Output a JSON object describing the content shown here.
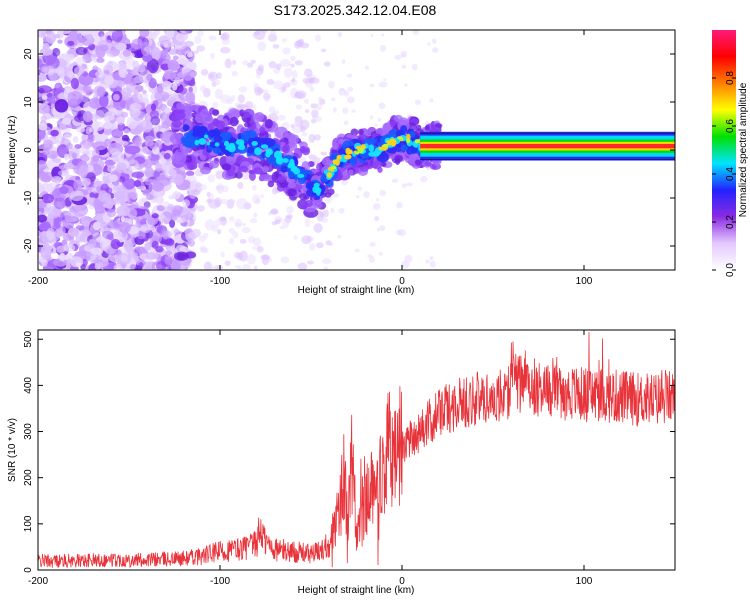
{
  "title": "S173.2025.342.12.04.E08",
  "colors": {
    "snr_line": "#e8333a",
    "axis": "#000000",
    "speckle": "#7b2ff7",
    "ridge": "#ff2a2a"
  },
  "chart_data": [
    {
      "type": "heatmap",
      "title": "S173.2025.342.12.04.E08",
      "xlabel": "Height of straight line (km)",
      "ylabel": "Frequency (Hz)",
      "xlim": [
        -200,
        150
      ],
      "ylim": [
        -25,
        25
      ],
      "xticks": [
        -200,
        -100,
        0,
        100
      ],
      "yticks": [
        -20,
        -10,
        0,
        10,
        20
      ],
      "xtick_labels": [
        "-200",
        "-100",
        "0",
        "100"
      ],
      "ytick_labels": [
        "-20",
        "-10",
        "0",
        "10",
        "20"
      ],
      "ridge": {
        "x": [
          -120,
          -105,
          -95,
          -85,
          -75,
          -65,
          -55,
          -48,
          -45,
          -40,
          -35,
          -30,
          -25,
          -20,
          -15,
          -10,
          -5,
          0,
          5,
          10,
          20,
          60,
          100,
          150
        ],
        "y": [
          3,
          2,
          1,
          1.5,
          0,
          -2,
          -5,
          -8,
          -8,
          -5,
          -2,
          -1,
          0,
          0,
          0,
          0.5,
          1.5,
          2.5,
          2,
          1,
          0.8,
          0.8,
          0.8,
          0.8
        ]
      },
      "colorbar": {
        "label": "Normalized spectral amplitude",
        "range": [
          0,
          1
        ],
        "ticks": [
          "0.0",
          "0.2",
          "0.4",
          "0.6",
          "0.8"
        ],
        "tick_values": [
          0.0,
          0.2,
          0.4,
          0.6,
          0.8
        ],
        "stops": [
          "#ffffff",
          "#e4c8ff",
          "#8a2be2",
          "#2222ff",
          "#00e5ff",
          "#00e000",
          "#ffff00",
          "#ff7f00",
          "#ff0000",
          "#ff1a7a"
        ]
      }
    },
    {
      "type": "line",
      "xlabel": "Height of straight line (km)",
      "ylabel": "SNR (10 * v/v)",
      "xlim": [
        -200,
        150
      ],
      "ylim": [
        0,
        520
      ],
      "xticks": [
        -200,
        -100,
        0,
        100
      ],
      "yticks": [
        0,
        100,
        200,
        300,
        400,
        500
      ],
      "xtick_labels": [
        "-200",
        "-100",
        "0",
        "100"
      ],
      "ytick_labels": [
        "0",
        "100",
        "200",
        "300",
        "400",
        "500"
      ],
      "series": [
        {
          "name": "SNR",
          "x": [
            -200,
            -180,
            -160,
            -140,
            -120,
            -110,
            -100,
            -90,
            -80,
            -78,
            -75,
            -70,
            -60,
            -50,
            -45,
            -40,
            -35,
            -32,
            -30,
            -27,
            -25,
            -22,
            -20,
            -15,
            -10,
            -5,
            0,
            5,
            10,
            15,
            20,
            25,
            30,
            40,
            50,
            58,
            60,
            65,
            70,
            80,
            90,
            100,
            110,
            120,
            130,
            140,
            150
          ],
          "y": [
            20,
            20,
            22,
            22,
            25,
            30,
            40,
            45,
            55,
            90,
            60,
            45,
            40,
            35,
            40,
            60,
            120,
            200,
            100,
            250,
            90,
            180,
            150,
            200,
            240,
            260,
            270,
            290,
            300,
            320,
            340,
            350,
            360,
            370,
            375,
            380,
            420,
            400,
            400,
            390,
            385,
            380,
            380,
            375,
            370,
            370,
            375
          ]
        }
      ]
    }
  ]
}
